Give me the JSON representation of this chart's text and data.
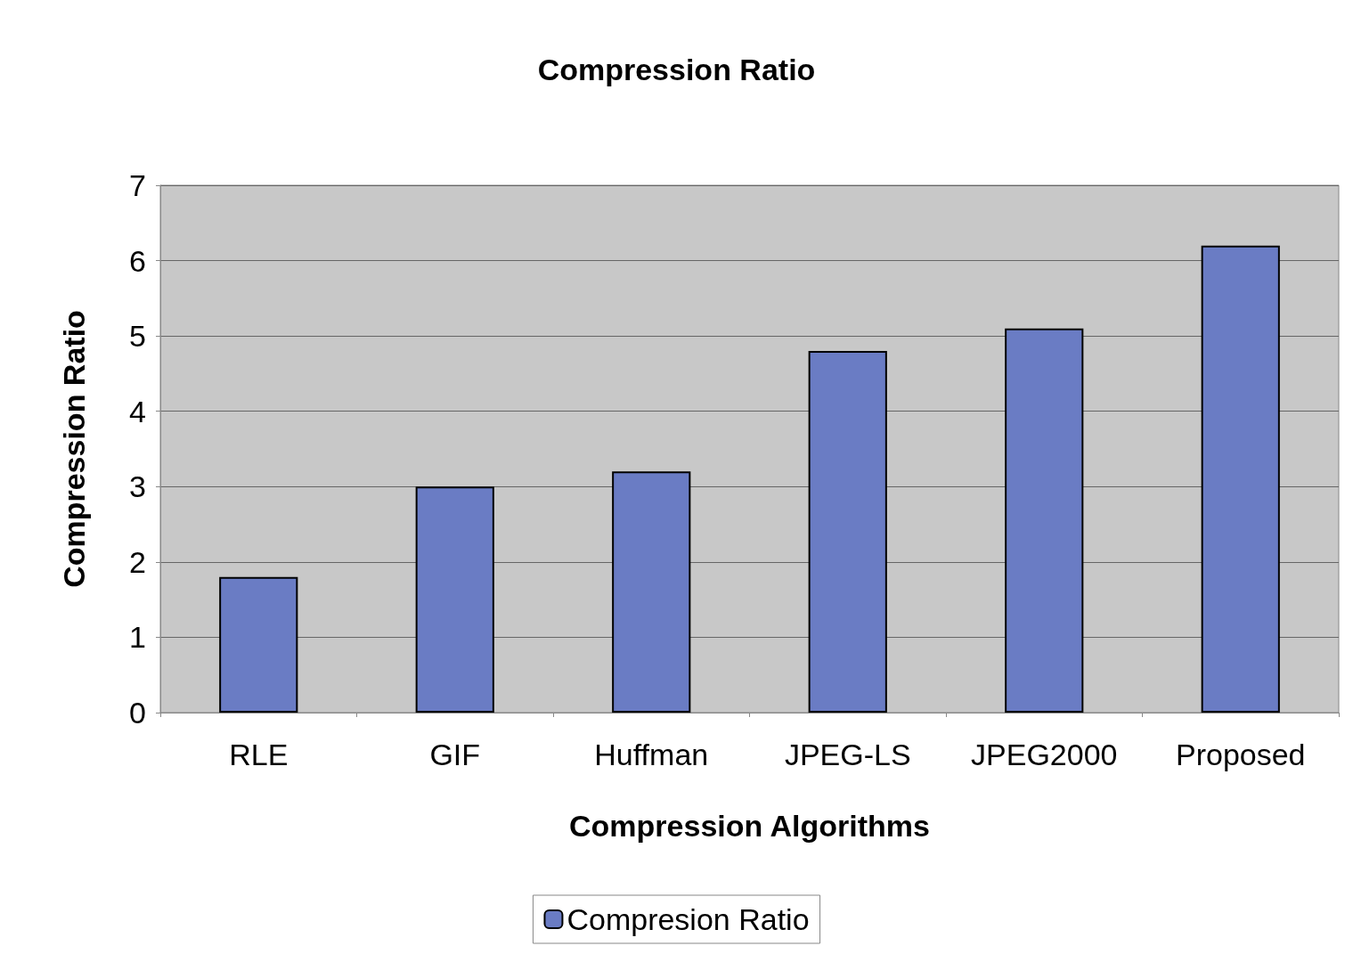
{
  "chart_data": {
    "type": "bar",
    "title": "Compression Ratio",
    "xlabel": "Compression Algorithms",
    "ylabel": "Compression Ratio",
    "categories": [
      "RLE",
      "GIF",
      "Huffman",
      "JPEG-LS",
      "JPEG2000",
      "Proposed"
    ],
    "series": [
      {
        "name": "Compresion Ratio",
        "color": "#6a7cc4",
        "values": [
          1.8,
          3.0,
          3.2,
          4.8,
          5.1,
          6.2
        ]
      }
    ],
    "ylim": [
      0,
      7
    ],
    "yticks": [
      0,
      1,
      2,
      3,
      4,
      5,
      6,
      7
    ],
    "grid": "y",
    "legend": "bottom"
  }
}
